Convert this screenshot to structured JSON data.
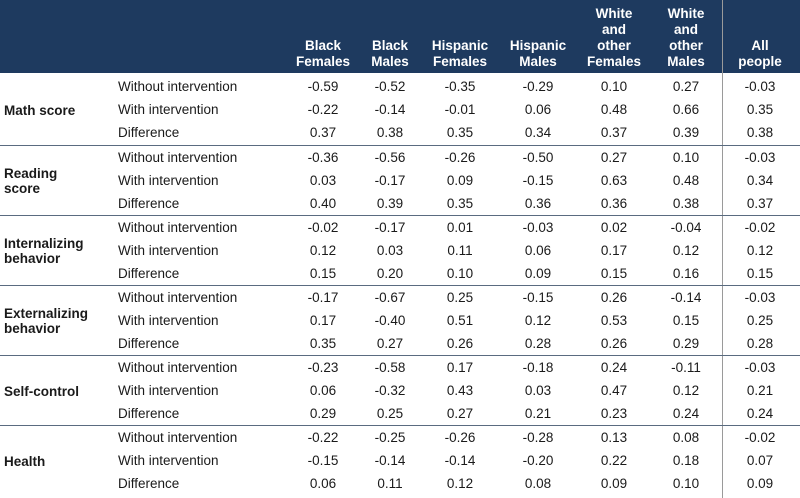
{
  "chart_data": {
    "type": "table",
    "columns": [
      [
        "Black",
        "Females"
      ],
      [
        "Black",
        "Males"
      ],
      [
        "Hispanic",
        "Females"
      ],
      [
        "Hispanic",
        "Males"
      ],
      [
        "White",
        "and",
        "other",
        "Females"
      ],
      [
        "White",
        "and",
        "other",
        "Males"
      ],
      [
        "All",
        "people"
      ]
    ],
    "groups": [
      {
        "label": [
          "Math score"
        ],
        "rows": [
          {
            "label": "Without intervention",
            "values": [
              "-0.59",
              "-0.52",
              "-0.35",
              "-0.29",
              "0.10",
              "0.27",
              "-0.03"
            ]
          },
          {
            "label": "With intervention",
            "values": [
              "-0.22",
              "-0.14",
              "-0.01",
              "0.06",
              "0.48",
              "0.66",
              "0.35"
            ]
          },
          {
            "label": "Difference",
            "values": [
              "0.37",
              "0.38",
              "0.35",
              "0.34",
              "0.37",
              "0.39",
              "0.38"
            ]
          }
        ]
      },
      {
        "label": [
          "Reading",
          "score"
        ],
        "rows": [
          {
            "label": "Without intervention",
            "values": [
              "-0.36",
              "-0.56",
              "-0.26",
              "-0.50",
              "0.27",
              "0.10",
              "-0.03"
            ]
          },
          {
            "label": "With intervention",
            "values": [
              "0.03",
              "-0.17",
              "0.09",
              "-0.15",
              "0.63",
              "0.48",
              "0.34"
            ]
          },
          {
            "label": "Difference",
            "values": [
              "0.40",
              "0.39",
              "0.35",
              "0.36",
              "0.36",
              "0.38",
              "0.37"
            ]
          }
        ]
      },
      {
        "label": [
          "Internalizing",
          "behavior"
        ],
        "rows": [
          {
            "label": "Without intervention",
            "values": [
              "-0.02",
              "-0.17",
              "0.01",
              "-0.03",
              "0.02",
              "-0.04",
              "-0.02"
            ]
          },
          {
            "label": "With intervention",
            "values": [
              "0.12",
              "0.03",
              "0.11",
              "0.06",
              "0.17",
              "0.12",
              "0.12"
            ]
          },
          {
            "label": "Difference",
            "values": [
              "0.15",
              "0.20",
              "0.10",
              "0.09",
              "0.15",
              "0.16",
              "0.15"
            ]
          }
        ]
      },
      {
        "label": [
          "Externalizing",
          "behavior"
        ],
        "rows": [
          {
            "label": "Without intervention",
            "values": [
              "-0.17",
              "-0.67",
              "0.25",
              "-0.15",
              "0.26",
              "-0.14",
              "-0.03"
            ]
          },
          {
            "label": "With intervention",
            "values": [
              "0.17",
              "-0.40",
              "0.51",
              "0.12",
              "0.53",
              "0.15",
              "0.25"
            ]
          },
          {
            "label": "Difference",
            "values": [
              "0.35",
              "0.27",
              "0.26",
              "0.28",
              "0.26",
              "0.29",
              "0.28"
            ]
          }
        ]
      },
      {
        "label": [
          "Self-control"
        ],
        "rows": [
          {
            "label": "Without intervention",
            "values": [
              "-0.23",
              "-0.58",
              "0.17",
              "-0.18",
              "0.24",
              "-0.11",
              "-0.03"
            ]
          },
          {
            "label": "With intervention",
            "values": [
              "0.06",
              "-0.32",
              "0.43",
              "0.03",
              "0.47",
              "0.12",
              "0.21"
            ]
          },
          {
            "label": "Difference",
            "values": [
              "0.29",
              "0.25",
              "0.27",
              "0.21",
              "0.23",
              "0.24",
              "0.24"
            ]
          }
        ]
      },
      {
        "label": [
          "Health"
        ],
        "rows": [
          {
            "label": "Without intervention",
            "values": [
              "-0.22",
              "-0.25",
              "-0.26",
              "-0.28",
              "0.13",
              "0.08",
              "-0.02"
            ]
          },
          {
            "label": "With intervention",
            "values": [
              "-0.15",
              "-0.14",
              "-0.14",
              "-0.20",
              "0.22",
              "0.18",
              "0.07"
            ]
          },
          {
            "label": "Difference",
            "values": [
              "0.06",
              "0.11",
              "0.12",
              "0.08",
              "0.09",
              "0.10",
              "0.09"
            ]
          }
        ]
      }
    ]
  },
  "colors": {
    "header_background": "#1e3a5f",
    "header_text": "#ffffff",
    "body_text": "#1a1a1a"
  }
}
